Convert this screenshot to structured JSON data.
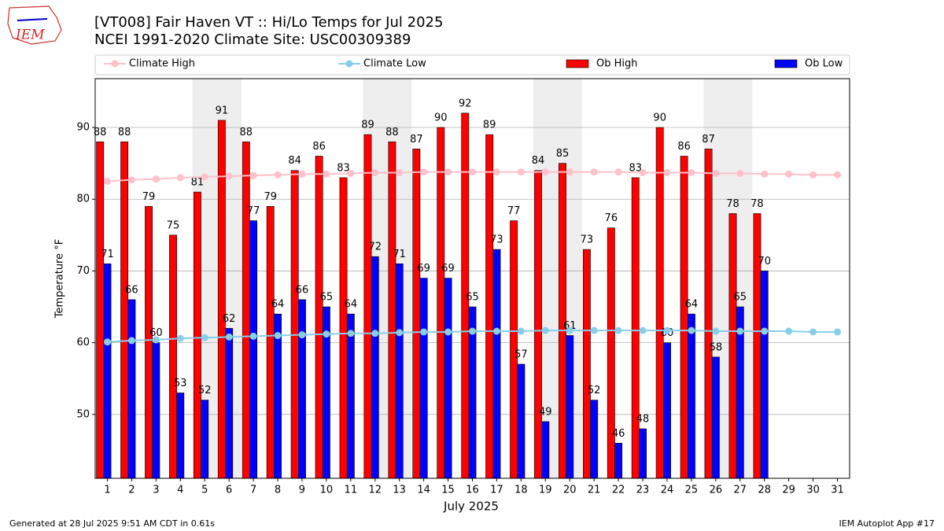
{
  "logo_text": "IEM",
  "footer": {
    "left": "Generated at 28 Jul 2025 9:51 AM CDT in 0.61s",
    "right": "IEM Autoplot App #17"
  },
  "chart_data": {
    "type": "bar",
    "title": "[VT008] Fair Haven  VT :: Hi/Lo Temps for Jul 2025",
    "subtitle": "NCEI 1991-2020 Climate Site: USC00309389",
    "x_label": "July 2025",
    "y_label": "Temperature °F",
    "x": [
      1,
      2,
      3,
      4,
      5,
      6,
      7,
      8,
      9,
      10,
      11,
      12,
      13,
      14,
      15,
      16,
      17,
      18,
      19,
      20,
      21,
      22,
      23,
      24,
      25,
      26,
      27,
      28,
      29,
      30,
      31
    ],
    "xlim": [
      0.5,
      31.5
    ],
    "xticks": [
      1,
      2,
      3,
      4,
      5,
      6,
      7,
      8,
      9,
      10,
      11,
      12,
      13,
      14,
      15,
      16,
      17,
      18,
      19,
      20,
      21,
      22,
      23,
      24,
      25,
      26,
      27,
      28,
      29,
      30,
      31
    ],
    "ylim": [
      41.1,
      96.8
    ],
    "yticks": [
      50,
      60,
      70,
      80,
      90
    ],
    "grid": true,
    "weekend_days": [
      5,
      6,
      12,
      13,
      19,
      20,
      26,
      27
    ],
    "series": [
      {
        "name": "Climate High",
        "kind": "line",
        "color": "#ffc0cb",
        "values": [
          82.5,
          82.7,
          82.8,
          83.0,
          83.1,
          83.2,
          83.3,
          83.4,
          83.5,
          83.5,
          83.6,
          83.7,
          83.7,
          83.8,
          83.8,
          83.8,
          83.8,
          83.8,
          83.8,
          83.8,
          83.8,
          83.8,
          83.7,
          83.7,
          83.7,
          83.6,
          83.6,
          83.5,
          83.5,
          83.4,
          83.4
        ]
      },
      {
        "name": "Climate Low",
        "kind": "line",
        "color": "#87ceeb",
        "values": [
          60.1,
          60.3,
          60.4,
          60.6,
          60.7,
          60.8,
          60.9,
          61.0,
          61.1,
          61.2,
          61.3,
          61.3,
          61.4,
          61.5,
          61.5,
          61.6,
          61.6,
          61.6,
          61.7,
          61.7,
          61.7,
          61.7,
          61.7,
          61.7,
          61.7,
          61.6,
          61.6,
          61.6,
          61.6,
          61.5,
          61.5
        ]
      },
      {
        "name": "Ob High",
        "kind": "bar",
        "color": "#ff0000",
        "values": [
          88,
          88,
          79,
          75,
          81,
          91,
          88,
          79,
          84,
          86,
          83,
          89,
          88,
          87,
          90,
          92,
          89,
          77,
          84,
          85,
          73,
          76,
          83,
          90,
          86,
          87,
          78,
          78,
          null,
          null,
          null
        ]
      },
      {
        "name": "Ob Low",
        "kind": "bar",
        "color": "#0000ff",
        "values": [
          71,
          66,
          60,
          53,
          52,
          62,
          77,
          64,
          66,
          65,
          64,
          72,
          71,
          69,
          69,
          65,
          73,
          57,
          49,
          61,
          52,
          46,
          48,
          60,
          64,
          58,
          65,
          70,
          null,
          null,
          null
        ]
      }
    ]
  }
}
